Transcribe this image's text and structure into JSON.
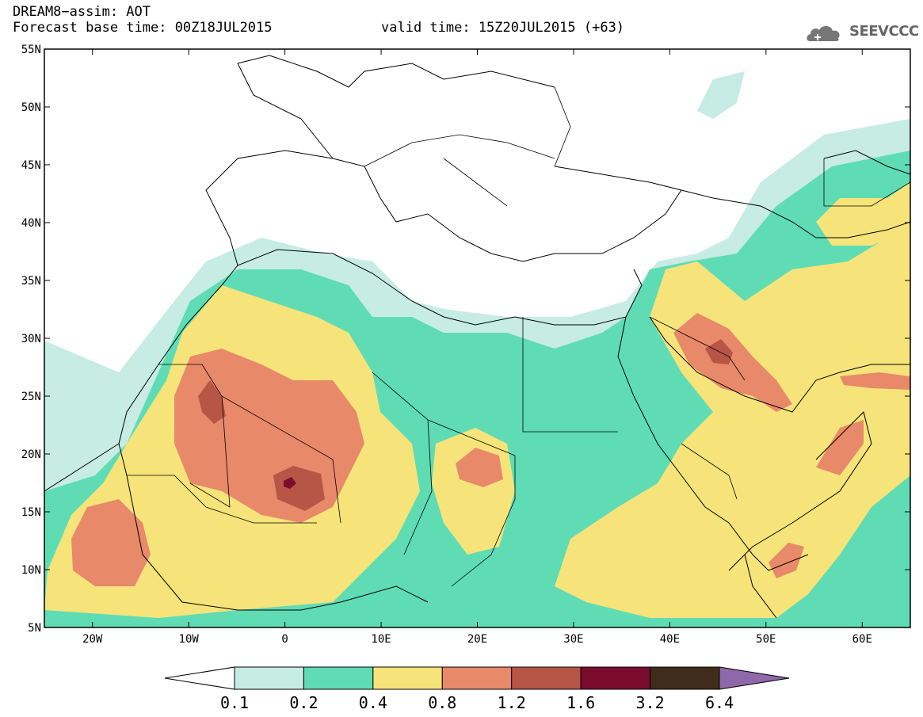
{
  "header": {
    "line1": "DREAM8−assim: AOT",
    "line2": "Forecast base time: 00Z18JUL2015",
    "valid": "valid time: 15Z20JUL2015 (+63)"
  },
  "brand": {
    "name": "SEEVCCC",
    "icon": "cloud-icon"
  },
  "map": {
    "projection": "lat-lon",
    "lon_range": [
      -25,
      65
    ],
    "lat_range": [
      5,
      55
    ],
    "lat_labels": [
      "55N",
      "50N",
      "45N",
      "40N",
      "35N",
      "30N",
      "25N",
      "20N",
      "15N",
      "10N",
      "5N"
    ],
    "lon_labels": [
      "20W",
      "10W",
      "0",
      "10E",
      "20E",
      "30E",
      "40E",
      "50E",
      "60E"
    ]
  },
  "colorbar": {
    "levels": [
      "0.1",
      "0.2",
      "0.4",
      "0.8",
      "1.2",
      "1.6",
      "3.2",
      "6.4"
    ],
    "colors": [
      "#ffffff",
      "#c6ece4",
      "#5fdcb4",
      "#f6e47a",
      "#e8896a",
      "#b75546",
      "#7a0d2e",
      "#412b1b",
      "#8e68a8"
    ]
  }
}
